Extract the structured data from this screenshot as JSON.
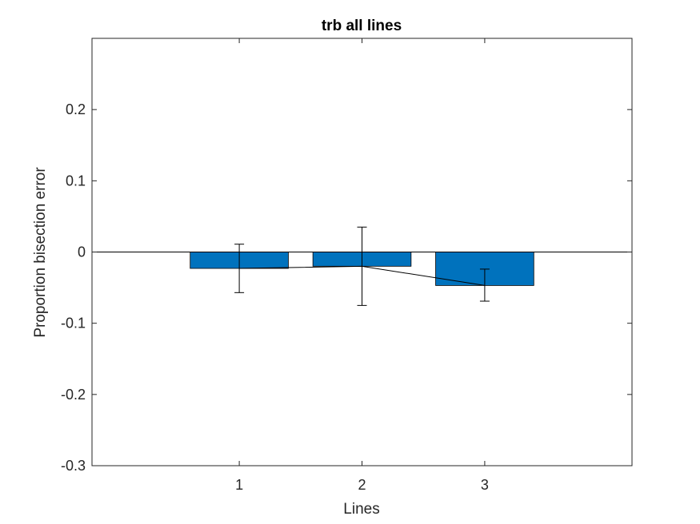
{
  "chart_data": {
    "type": "bar",
    "title": "trb all lines",
    "xlabel": "Lines",
    "ylabel": "Proportion bisection error",
    "categories": [
      "1",
      "2",
      "3"
    ],
    "values": [
      -0.023,
      -0.02,
      -0.047
    ],
    "error_low": [
      -0.057,
      -0.075,
      -0.069
    ],
    "error_high": [
      0.011,
      0.035,
      -0.024
    ],
    "connecting_line": true,
    "ylim": [
      -0.3,
      0.3
    ],
    "yticks": [
      -0.3,
      -0.2,
      -0.1,
      0,
      0.1,
      0.2
    ],
    "ytick_labels": [
      "-0.3",
      "-0.2",
      "-0.1",
      "0",
      "0.1",
      "0.2"
    ],
    "xlim": [
      -0.2,
      4.2
    ],
    "grid": false,
    "colors": {
      "bar": "#0072BD",
      "axes": "#262626"
    }
  }
}
